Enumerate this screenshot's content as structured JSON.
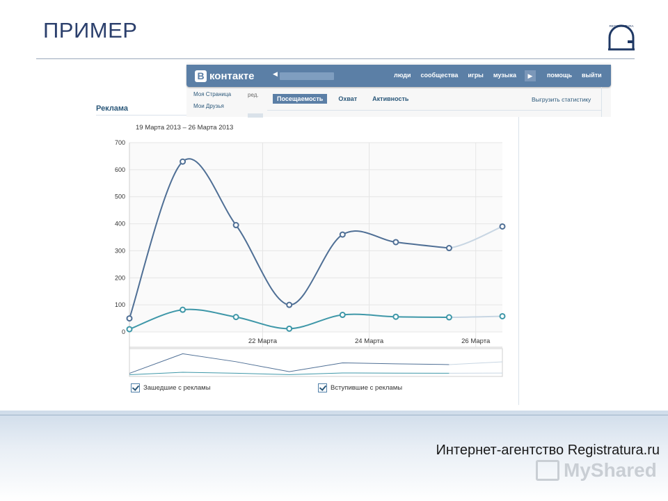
{
  "slide": {
    "title": "ПРИМЕР",
    "agency": "Интернет-агентство Registratura.ru",
    "logo_text": "REGISTRATURA",
    "watermark": "MyShared"
  },
  "vk": {
    "logo_letter": "В",
    "logo_text": "контакте",
    "nav": [
      "люди",
      "сообщества",
      "игры",
      "музыка"
    ],
    "nav2": [
      "помощь",
      "выйти"
    ],
    "left_menu": [
      "Моя Страница",
      "Мои Друзья"
    ],
    "edit_label": "ред.",
    "tabs": [
      {
        "label": "Посещаемость",
        "active": true
      },
      {
        "label": "Охват",
        "active": false
      },
      {
        "label": "Активность",
        "active": false
      }
    ],
    "export_label": "Выгрузить статистику",
    "ad_heading": "Реклама"
  },
  "chart_data": {
    "type": "line",
    "date_range": "19 Марта 2013 – 26 Марта 2013",
    "x": [
      0,
      1,
      2,
      3,
      4,
      5,
      6,
      7
    ],
    "x_tick_labels": [
      {
        "x": 2.5,
        "label": "22 Марта"
      },
      {
        "x": 4.5,
        "label": "24 Марта"
      },
      {
        "x": 6.5,
        "label": "26 Марта"
      }
    ],
    "ylim": [
      0,
      700
    ],
    "yticks": [
      0,
      100,
      200,
      300,
      400,
      500,
      600,
      700
    ],
    "grid": true,
    "series": [
      {
        "name": "Зашедшие с рекламы",
        "color": "#4f6f95",
        "values": [
          50,
          630,
          395,
          100,
          360,
          332,
          310,
          390
        ]
      },
      {
        "name": "Вступившие с рекламы",
        "color": "#3e97a8",
        "values": [
          10,
          82,
          55,
          12,
          63,
          56,
          54,
          58
        ]
      }
    ],
    "faded_last_segment_color": "#c8d6e3"
  },
  "colors": {
    "title": "#2b3f6c",
    "vk_blue": "#5b7fa6",
    "grid": "#e5e5e5"
  }
}
